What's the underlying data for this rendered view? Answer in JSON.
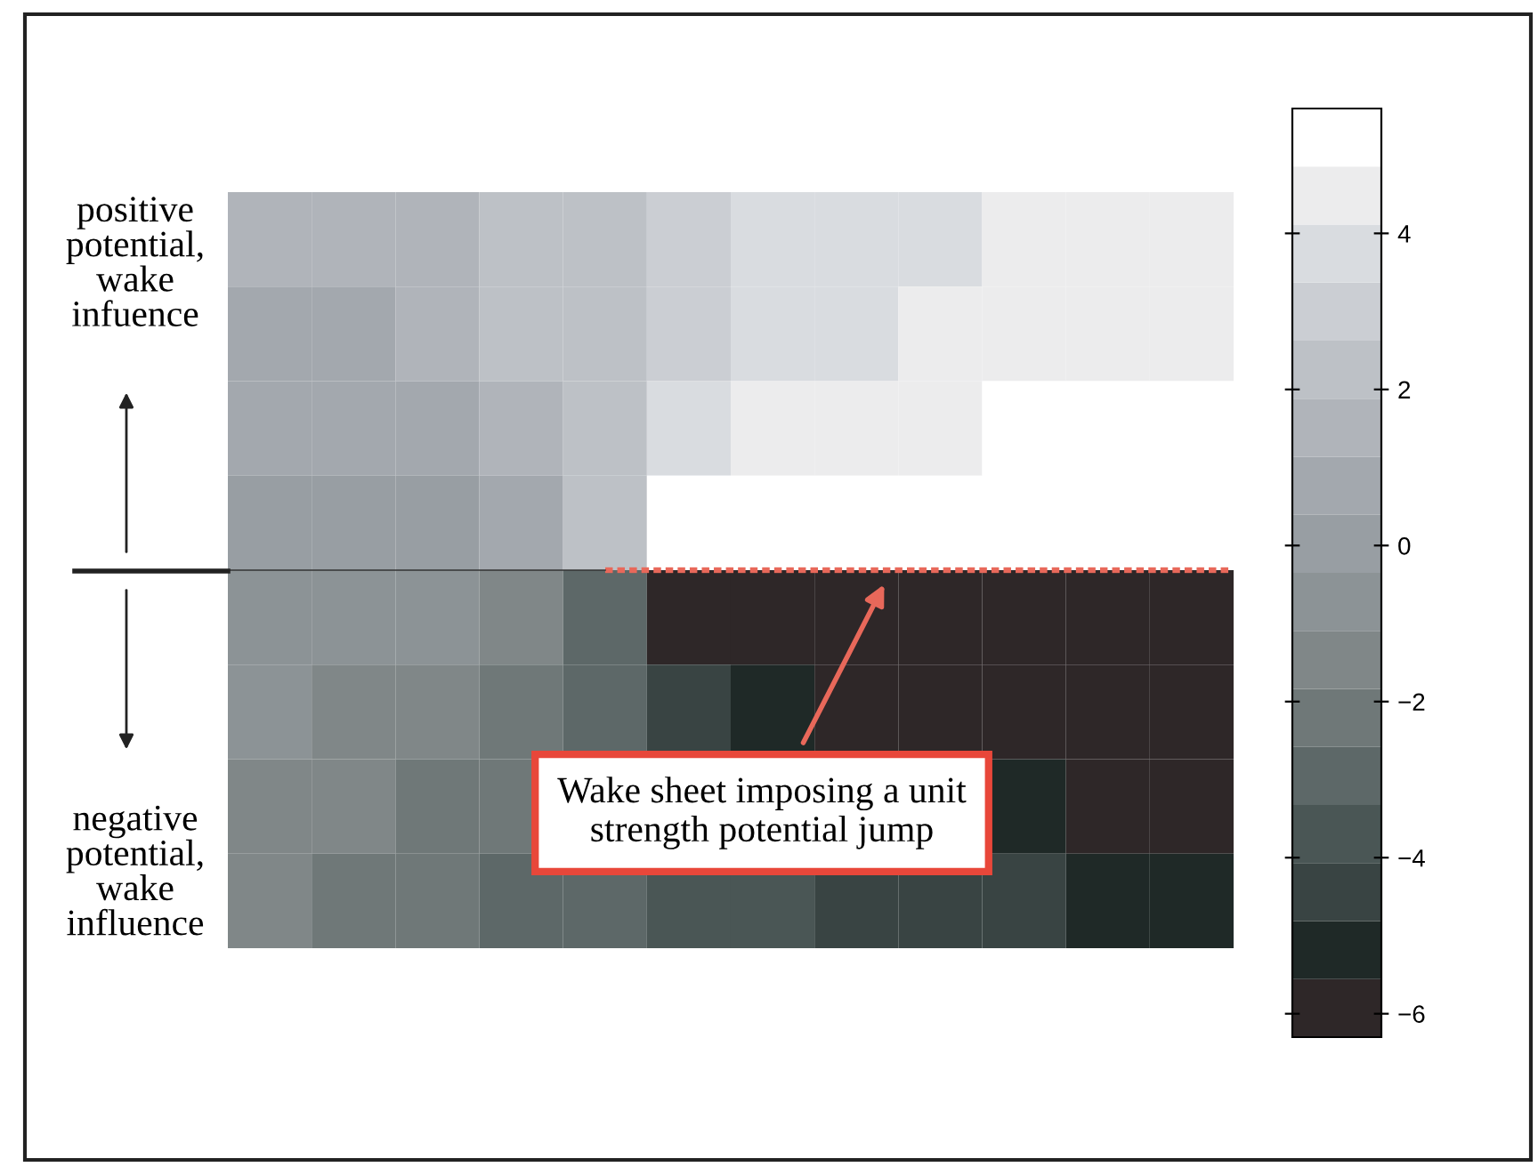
{
  "chart_data": {
    "type": "heatmap",
    "categories": [
      null,
      null,
      null,
      null,
      null,
      null,
      null,
      null,
      null,
      null,
      null,
      null
    ],
    "y_categories": [
      null,
      null,
      null,
      null,
      null,
      null,
      null,
      null
    ],
    "cells": [
      [
        1.2,
        1.4,
        1.8,
        2.2,
        2.6,
        3.1,
        3.5,
        3.8,
        4.1,
        4.3,
        4.4,
        4.6
      ],
      [
        0.9,
        1.1,
        1.5,
        2.0,
        2.6,
        3.2,
        3.8,
        4.1,
        4.4,
        4.6,
        4.7,
        4.8
      ],
      [
        0.5,
        0.7,
        1.0,
        1.6,
        2.6,
        3.6,
        4.2,
        4.6,
        4.8,
        4.9,
        5.5,
        5.5
      ],
      [
        0.0,
        0.1,
        0.2,
        0.7,
        2.6,
        5.0,
        5.5,
        5.5,
        5.5,
        5.5,
        5.5,
        5.5
      ],
      [
        -0.5,
        -0.6,
        -0.7,
        -1.2,
        -3.0,
        -5.6,
        -5.9,
        -5.9,
        -5.9,
        -5.9,
        -5.9,
        -5.9
      ],
      [
        -1.0,
        -1.2,
        -1.5,
        -2.1,
        -3.1,
        -4.3,
        -5.0,
        -5.6,
        -5.9,
        -5.9,
        -5.9,
        -5.9
      ],
      [
        -1.4,
        -1.6,
        -2.0,
        -2.5,
        null,
        null,
        null,
        null,
        null,
        -5.4,
        -5.9,
        -5.9
      ],
      [
        -1.7,
        -1.9,
        -2.2,
        -2.6,
        -3.1,
        -3.6,
        -4.0,
        -4.3,
        -4.6,
        -4.8,
        -4.9,
        -5.0
      ]
    ],
    "clim": [
      -6.3,
      5.6
    ],
    "cticks": [
      -6,
      -4,
      -2,
      0,
      2,
      4
    ],
    "colors": [
      "#2e2728",
      "#1f2927",
      "#394443",
      "#4a5655",
      "#5d6868",
      "#6f7878",
      "#808788",
      "#8c9396",
      "#989ea3",
      "#a3a8ae",
      "#b0b4ba",
      "#bdc1c6",
      "#cbced3",
      "#d9dce0",
      "#ececed",
      "#ffffff"
    ],
    "annotations": [
      "positive\npotential,\nwake\ninfuence",
      "negative\npotential,\nwake\ninfluence",
      "Wake sheet imposing a unit\nstrength potential jump"
    ]
  }
}
